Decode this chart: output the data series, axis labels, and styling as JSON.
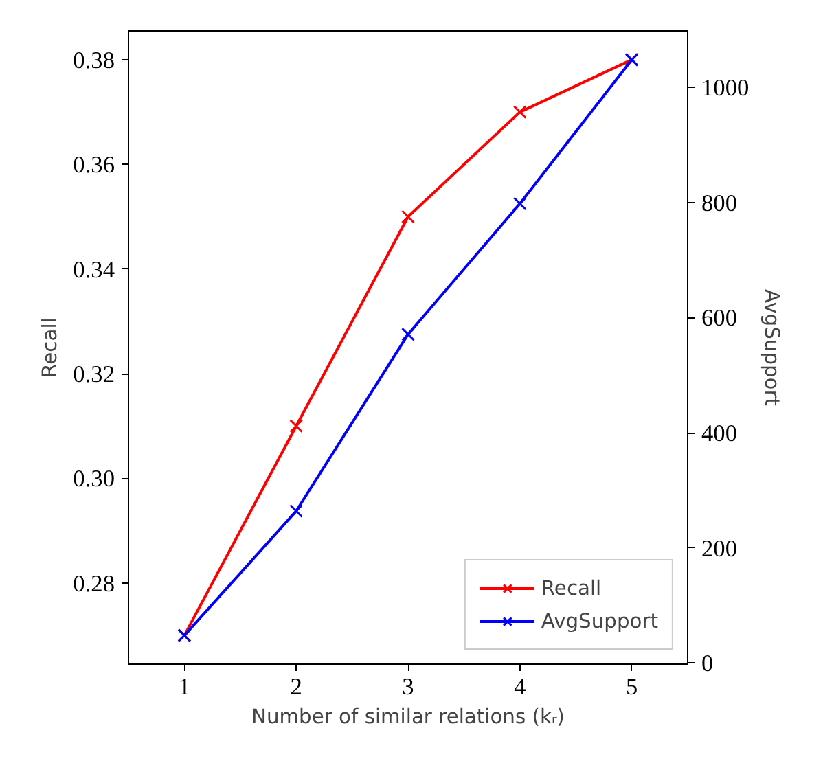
{
  "chart_data": {
    "type": "line",
    "xlabel": "Number of similar relations (kᵣ)",
    "ylabel": "Recall",
    "y2label": "AvgSupport",
    "x": [
      1,
      2,
      3,
      4,
      5
    ],
    "series": [
      {
        "name": "Recall",
        "color": "#ff0000",
        "values": [
          0.27,
          0.31,
          0.35,
          0.37,
          0.38
        ]
      },
      {
        "name": "AvgSupport",
        "color": "#0000ff",
        "axis": "y2",
        "values": [
          48,
          264,
          571,
          798,
          1048
        ]
      }
    ],
    "xlim": [
      0.5,
      5.5
    ],
    "xticks": [
      1,
      2,
      3,
      4,
      5
    ],
    "ylim": [
      0.2645,
      0.3855
    ],
    "yticks": [
      0.28,
      {
        "value": 0.3,
        "label": "0.30"
      },
      0.32,
      0.34,
      0.36,
      0.38
    ],
    "y2lim": [
      -2,
      1098
    ],
    "y2ticks": [
      0,
      200,
      400,
      600,
      800,
      1000
    ],
    "marker": "cross",
    "legend": "bottom right",
    "grid": false
  }
}
